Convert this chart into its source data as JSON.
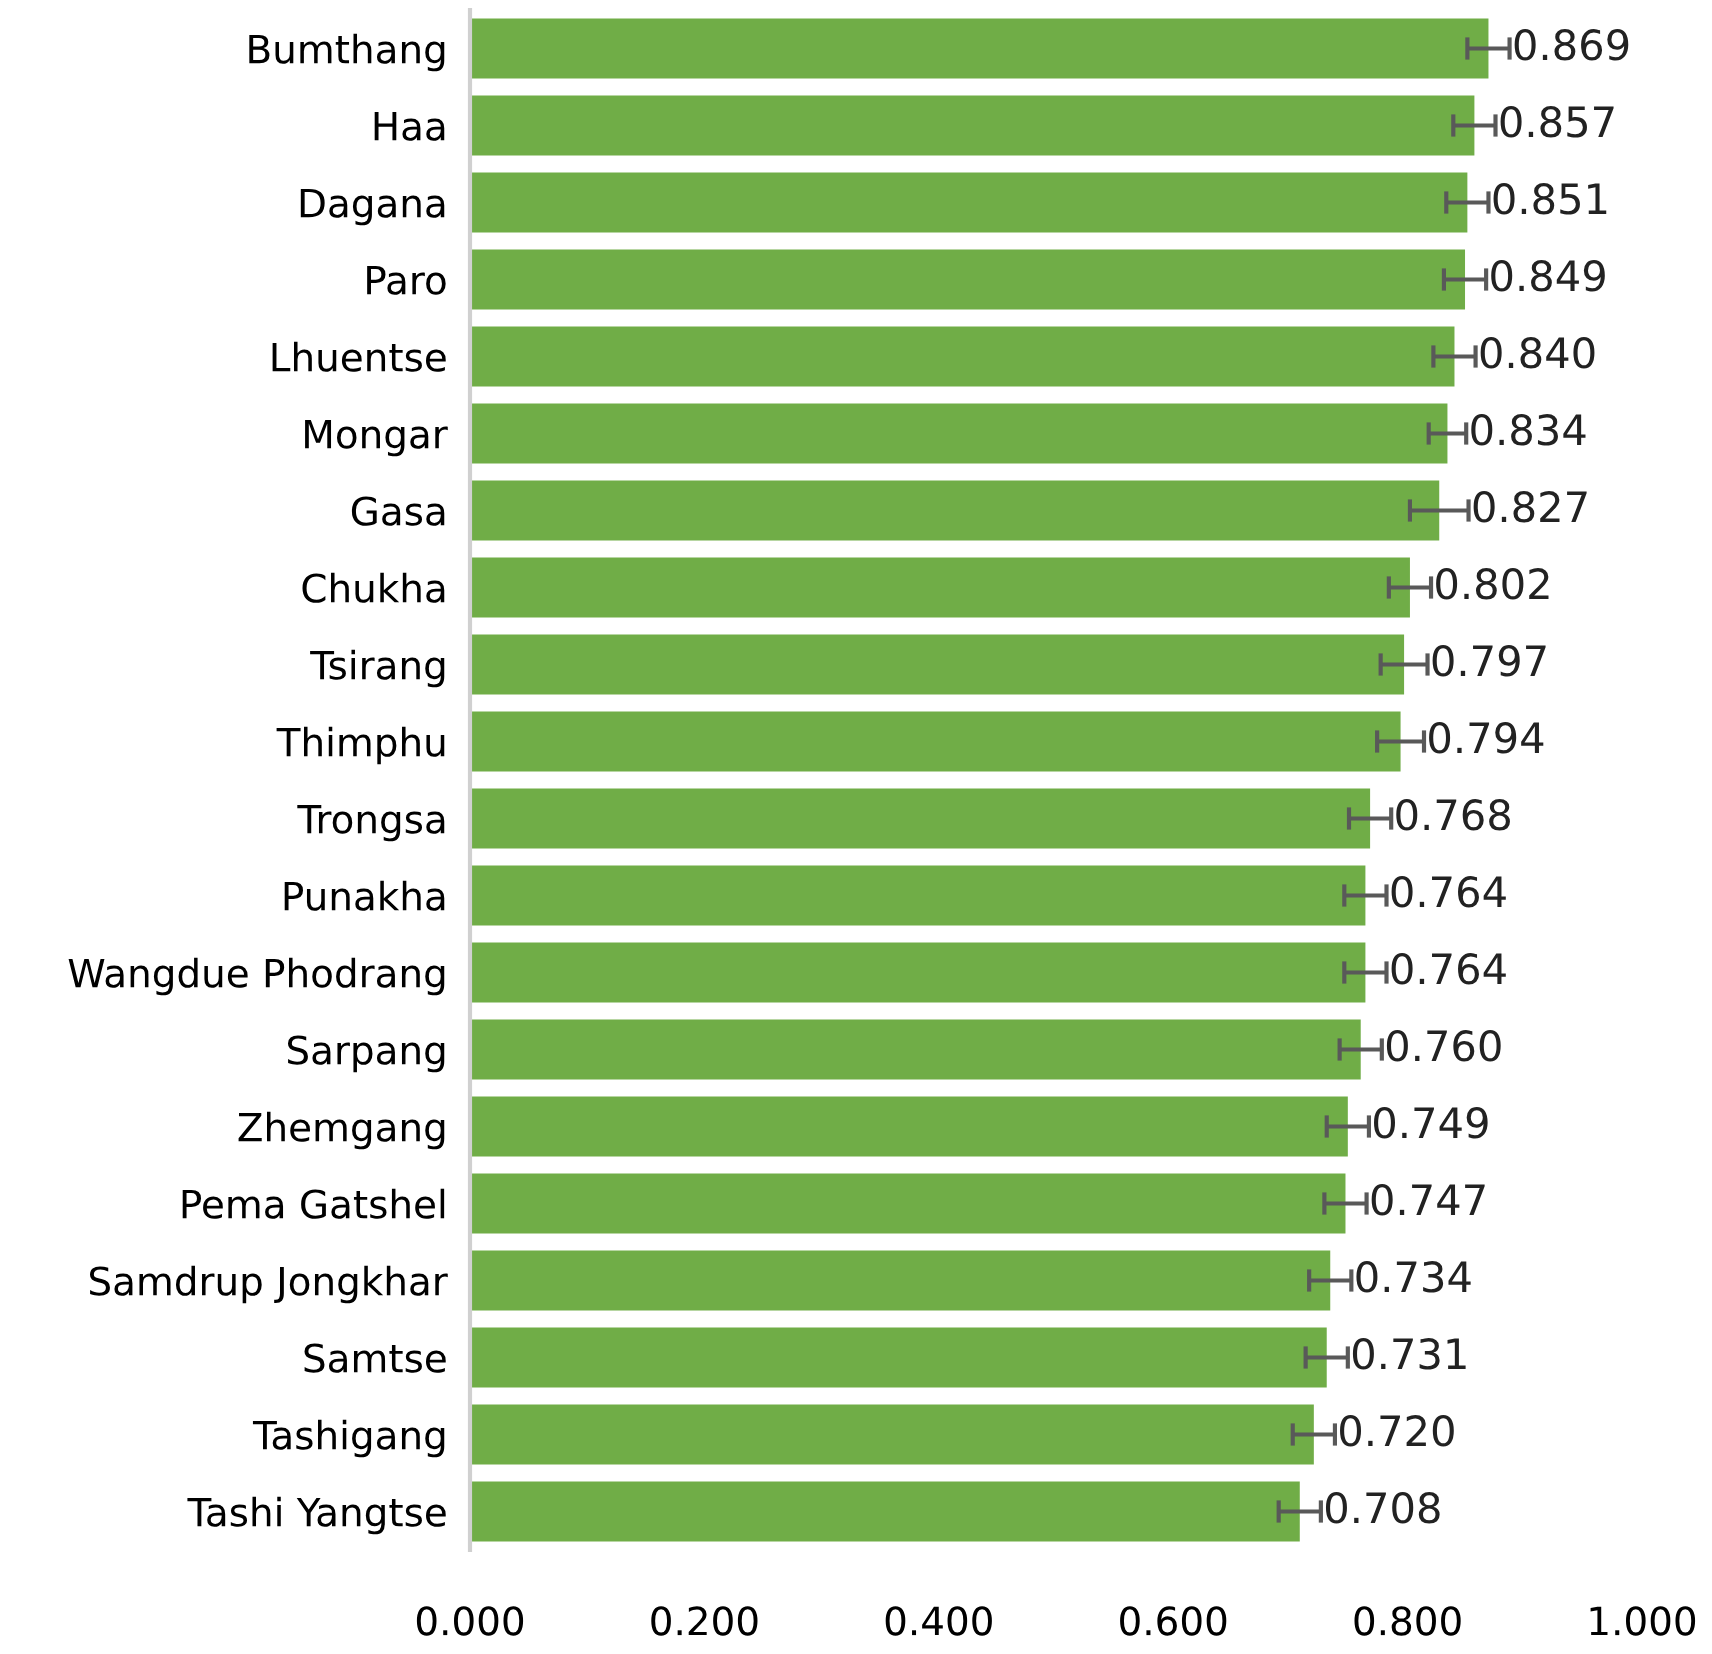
{
  "chart_data": {
    "type": "bar",
    "orientation": "horizontal",
    "categories": [
      "Bumthang",
      "Haa",
      "Dagana",
      "Paro",
      "Lhuentse",
      "Mongar",
      "Gasa",
      "Chukha",
      "Tsirang",
      "Thimphu",
      "Trongsa",
      "Punakha",
      "Wangdue Phodrang",
      "Sarpang",
      "Zhemgang",
      "Pema Gatshel",
      "Samdrup Jongkhar",
      "Samtse",
      "Tashigang",
      "Tashi Yangtse"
    ],
    "values": [
      0.869,
      0.857,
      0.851,
      0.849,
      0.84,
      0.834,
      0.827,
      0.802,
      0.797,
      0.794,
      0.768,
      0.764,
      0.764,
      0.76,
      0.749,
      0.747,
      0.734,
      0.731,
      0.72,
      0.708
    ],
    "errors": [
      0.018,
      0.018,
      0.018,
      0.018,
      0.018,
      0.016,
      0.025,
      0.018,
      0.02,
      0.02,
      0.018,
      0.018,
      0.018,
      0.018,
      0.018,
      0.018,
      0.018,
      0.018,
      0.018,
      0.018
    ],
    "color": "#70ad47",
    "value_labels": [
      "0.869",
      "0.857",
      "0.851",
      "0.849",
      "0.840",
      "0.834",
      "0.827",
      "0.802",
      "0.797",
      "0.794",
      "0.768",
      "0.764",
      "0.764",
      "0.760",
      "0.749",
      "0.747",
      "0.734",
      "0.731",
      "0.720",
      "0.708"
    ],
    "xlim": [
      0,
      1
    ],
    "xticks": [
      {
        "value": 0,
        "label": "0.000"
      },
      {
        "value": 0.2,
        "label": "0.200"
      },
      {
        "value": 0.4,
        "label": "0.400"
      },
      {
        "value": 0.6,
        "label": "0.600"
      },
      {
        "value": 0.8,
        "label": "0.800"
      },
      {
        "value": 1,
        "label": "1.000"
      }
    ],
    "grid": false,
    "legend": false
  }
}
